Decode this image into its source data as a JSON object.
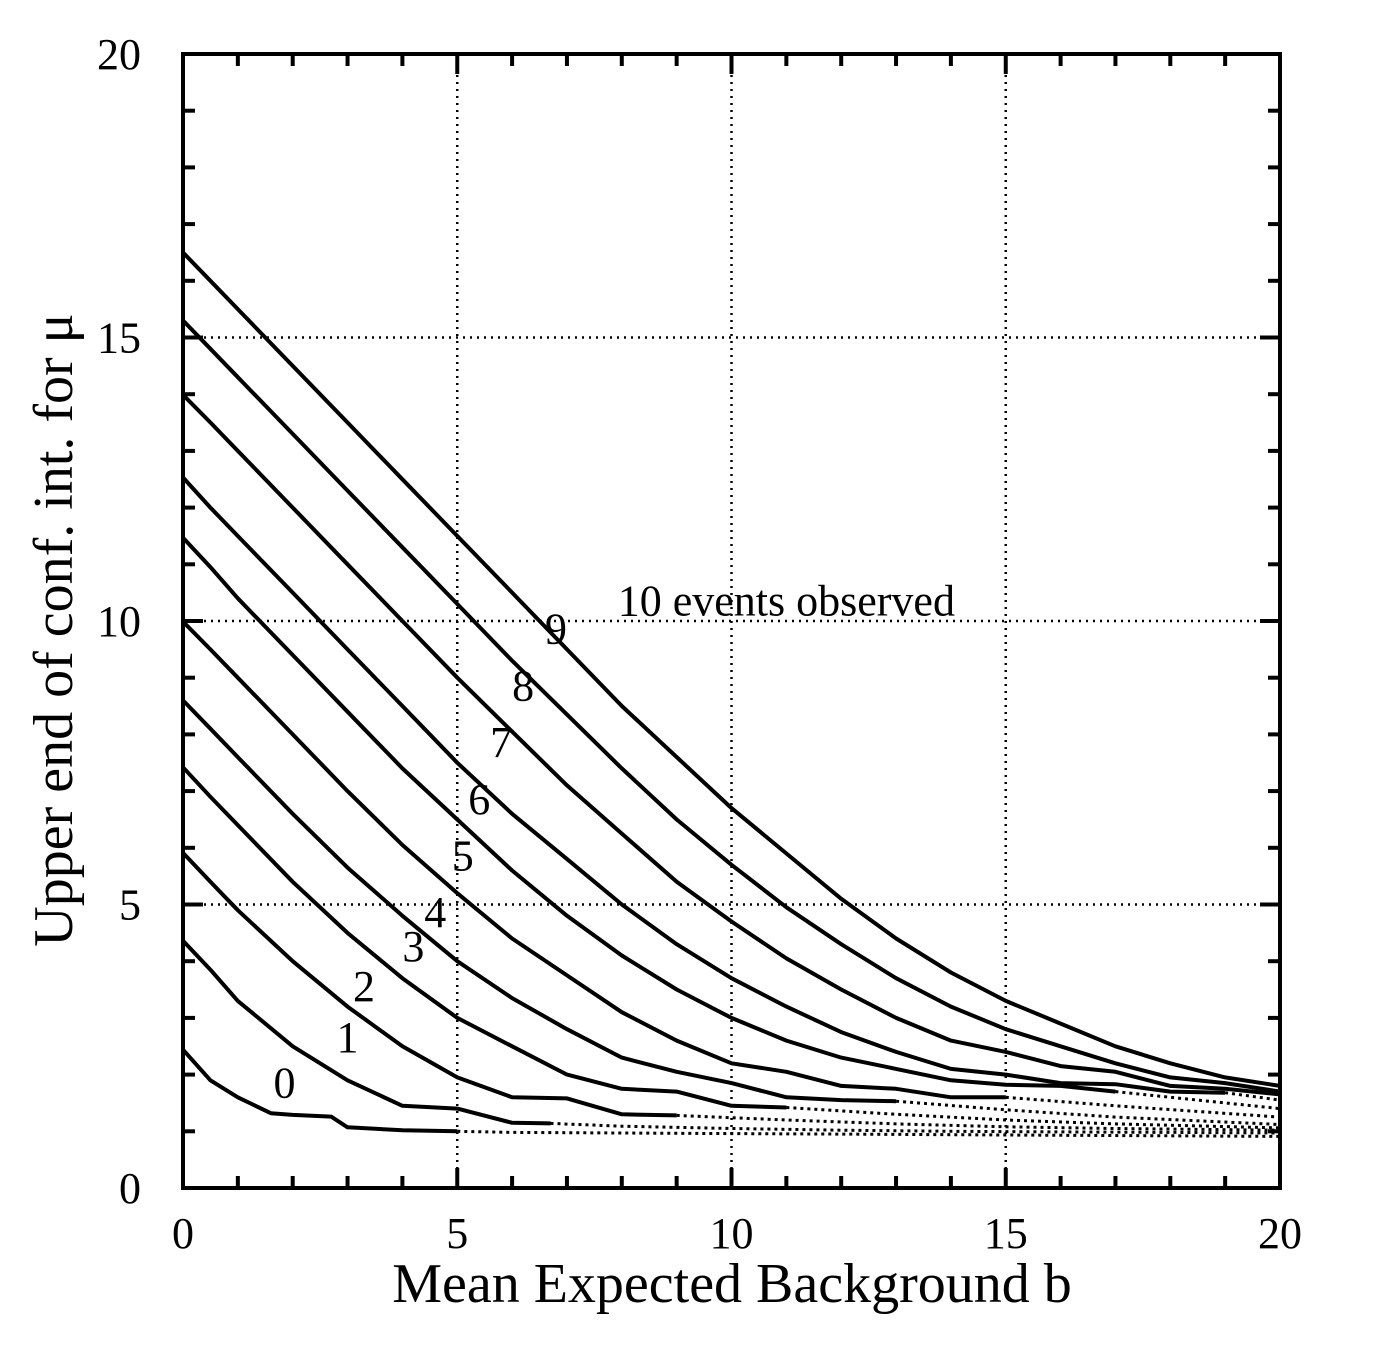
{
  "chart_data": {
    "type": "line",
    "xlabel": "Mean Expected Background b",
    "ylabel": "Upper end of conf. int. for μ",
    "xlim": [
      0,
      20
    ],
    "ylim": [
      0,
      20
    ],
    "x_ticks": [
      "0",
      "5",
      "10",
      "15",
      "20"
    ],
    "y_ticks": [
      "0",
      "5",
      "10",
      "15",
      "20"
    ],
    "grid": true,
    "colors": {
      "line": "#000000",
      "grid": "#000000"
    },
    "series": [
      {
        "name": "0",
        "label": "0",
        "solid": [
          [
            0,
            2.44
          ],
          [
            0.5,
            1.9
          ],
          [
            1,
            1.6
          ],
          [
            1.6,
            1.32
          ],
          [
            2,
            1.29
          ],
          [
            2.7,
            1.26
          ],
          [
            3,
            1.07
          ],
          [
            4,
            1.02
          ],
          [
            5,
            1.0
          ]
        ],
        "dotted": [
          [
            5,
            1.0
          ],
          [
            6,
            0.98
          ],
          [
            8,
            0.97
          ],
          [
            10,
            0.96
          ],
          [
            12,
            0.95
          ],
          [
            14,
            0.94
          ],
          [
            16,
            0.93
          ],
          [
            18,
            0.92
          ],
          [
            20,
            0.91
          ]
        ]
      },
      {
        "name": "1",
        "label": "1",
        "solid": [
          [
            0,
            4.36
          ],
          [
            0.5,
            3.85
          ],
          [
            1,
            3.3
          ],
          [
            2,
            2.5
          ],
          [
            3,
            1.9
          ],
          [
            4,
            1.45
          ],
          [
            5,
            1.4
          ],
          [
            6,
            1.15
          ],
          [
            6.7,
            1.14
          ]
        ],
        "dotted": [
          [
            6.7,
            1.14
          ],
          [
            8,
            1.09
          ],
          [
            10,
            1.05
          ],
          [
            12,
            1.02
          ],
          [
            14,
            1.0
          ],
          [
            16,
            0.99
          ],
          [
            18,
            0.98
          ],
          [
            20,
            0.97
          ]
        ]
      },
      {
        "name": "2",
        "label": "2",
        "solid": [
          [
            0,
            5.91
          ],
          [
            0.5,
            5.4
          ],
          [
            1,
            4.9
          ],
          [
            2,
            4.0
          ],
          [
            3,
            3.2
          ],
          [
            4,
            2.5
          ],
          [
            5,
            1.95
          ],
          [
            6,
            1.6
          ],
          [
            7,
            1.58
          ],
          [
            8,
            1.3
          ],
          [
            9,
            1.28
          ]
        ],
        "dotted": [
          [
            9,
            1.28
          ],
          [
            11,
            1.2
          ],
          [
            13,
            1.13
          ],
          [
            15,
            1.08
          ],
          [
            17,
            1.05
          ],
          [
            20,
            1.02
          ]
        ]
      },
      {
        "name": "3",
        "label": "3",
        "solid": [
          [
            0,
            7.42
          ],
          [
            0.5,
            6.9
          ],
          [
            1,
            6.4
          ],
          [
            2,
            5.4
          ],
          [
            3,
            4.5
          ],
          [
            4,
            3.7
          ],
          [
            5,
            3.0
          ],
          [
            6,
            2.5
          ],
          [
            7,
            2.0
          ],
          [
            8,
            1.75
          ],
          [
            9,
            1.7
          ],
          [
            10,
            1.45
          ],
          [
            11,
            1.42
          ]
        ],
        "dotted": [
          [
            11,
            1.42
          ],
          [
            13,
            1.3
          ],
          [
            15,
            1.2
          ],
          [
            17,
            1.13
          ],
          [
            20,
            1.06
          ]
        ]
      },
      {
        "name": "4",
        "label": "4",
        "solid": [
          [
            0,
            8.6
          ],
          [
            0.5,
            8.1
          ],
          [
            1,
            7.6
          ],
          [
            2,
            6.6
          ],
          [
            3,
            5.65
          ],
          [
            4,
            4.8
          ],
          [
            5,
            4.0
          ],
          [
            6,
            3.35
          ],
          [
            7,
            2.8
          ],
          [
            8,
            2.3
          ],
          [
            9,
            2.05
          ],
          [
            10,
            1.85
          ],
          [
            11,
            1.6
          ],
          [
            12,
            1.55
          ],
          [
            13,
            1.53
          ]
        ],
        "dotted": [
          [
            13,
            1.53
          ],
          [
            15,
            1.38
          ],
          [
            17,
            1.25
          ],
          [
            20,
            1.12
          ]
        ]
      },
      {
        "name": "5",
        "label": "5",
        "solid": [
          [
            0,
            9.99
          ],
          [
            0.5,
            9.5
          ],
          [
            1,
            9.0
          ],
          [
            2,
            8.0
          ],
          [
            3,
            7.0
          ],
          [
            4,
            6.05
          ],
          [
            5,
            5.2
          ],
          [
            6,
            4.4
          ],
          [
            7,
            3.75
          ],
          [
            8,
            3.1
          ],
          [
            9,
            2.6
          ],
          [
            10,
            2.2
          ],
          [
            11,
            2.05
          ],
          [
            12,
            1.8
          ],
          [
            13,
            1.75
          ],
          [
            14,
            1.6
          ],
          [
            15,
            1.6
          ]
        ],
        "dotted": [
          [
            15,
            1.6
          ],
          [
            17,
            1.45
          ],
          [
            20,
            1.25
          ]
        ]
      },
      {
        "name": "6",
        "label": "6",
        "solid": [
          [
            0,
            11.47
          ],
          [
            0.5,
            10.95
          ],
          [
            1,
            10.4
          ],
          [
            2,
            9.4
          ],
          [
            3,
            8.4
          ],
          [
            4,
            7.4
          ],
          [
            5,
            6.5
          ],
          [
            6,
            5.6
          ],
          [
            7,
            4.8
          ],
          [
            8,
            4.1
          ],
          [
            9,
            3.5
          ],
          [
            10,
            3.0
          ],
          [
            11,
            2.6
          ],
          [
            12,
            2.3
          ],
          [
            13,
            2.1
          ],
          [
            14,
            1.9
          ],
          [
            15,
            1.82
          ],
          [
            16,
            1.8
          ],
          [
            17,
            1.7
          ]
        ],
        "dotted": [
          [
            17,
            1.7
          ],
          [
            20,
            1.4
          ]
        ]
      },
      {
        "name": "7",
        "label": "7",
        "solid": [
          [
            0,
            12.53
          ],
          [
            0.5,
            12.0
          ],
          [
            1,
            11.5
          ],
          [
            2,
            10.5
          ],
          [
            3,
            9.5
          ],
          [
            4,
            8.5
          ],
          [
            5,
            7.5
          ],
          [
            6,
            6.6
          ],
          [
            7,
            5.8
          ],
          [
            8,
            5.0
          ],
          [
            9,
            4.3
          ],
          [
            10,
            3.7
          ],
          [
            11,
            3.2
          ],
          [
            12,
            2.75
          ],
          [
            13,
            2.4
          ],
          [
            14,
            2.1
          ],
          [
            15,
            2.0
          ],
          [
            16,
            1.85
          ],
          [
            17,
            1.83
          ],
          [
            18,
            1.7
          ],
          [
            19,
            1.68
          ]
        ],
        "dotted": [
          [
            19,
            1.68
          ],
          [
            20,
            1.55
          ]
        ]
      },
      {
        "name": "8",
        "label": "8",
        "solid": [
          [
            0,
            13.99
          ],
          [
            0.5,
            13.5
          ],
          [
            1,
            13.0
          ],
          [
            2,
            12.0
          ],
          [
            3,
            11.0
          ],
          [
            4,
            10.0
          ],
          [
            5,
            9.0
          ],
          [
            6,
            8.05
          ],
          [
            7,
            7.1
          ],
          [
            8,
            6.25
          ],
          [
            9,
            5.4
          ],
          [
            10,
            4.7
          ],
          [
            11,
            4.05
          ],
          [
            12,
            3.5
          ],
          [
            13,
            3.0
          ],
          [
            14,
            2.6
          ],
          [
            15,
            2.4
          ],
          [
            16,
            2.15
          ],
          [
            17,
            2.05
          ],
          [
            18,
            1.8
          ],
          [
            19,
            1.75
          ],
          [
            20,
            1.65
          ]
        ],
        "dotted": []
      },
      {
        "name": "9",
        "label": "9",
        "solid": [
          [
            0,
            15.3
          ],
          [
            0.5,
            14.8
          ],
          [
            1,
            14.3
          ],
          [
            2,
            13.3
          ],
          [
            3,
            12.3
          ],
          [
            4,
            11.3
          ],
          [
            5,
            10.3
          ],
          [
            6,
            9.3
          ],
          [
            7,
            8.35
          ],
          [
            8,
            7.4
          ],
          [
            9,
            6.5
          ],
          [
            10,
            5.7
          ],
          [
            11,
            4.95
          ],
          [
            12,
            4.3
          ],
          [
            13,
            3.7
          ],
          [
            14,
            3.2
          ],
          [
            15,
            2.8
          ],
          [
            16,
            2.5
          ],
          [
            17,
            2.2
          ],
          [
            18,
            1.95
          ],
          [
            19,
            1.85
          ],
          [
            20,
            1.7
          ]
        ],
        "dotted": []
      },
      {
        "name": "10 events observed",
        "label": "10 events observed",
        "solid": [
          [
            0,
            16.5
          ],
          [
            0.5,
            16.0
          ],
          [
            1,
            15.5
          ],
          [
            2,
            14.5
          ],
          [
            3,
            13.5
          ],
          [
            4,
            12.5
          ],
          [
            5,
            11.5
          ],
          [
            6,
            10.5
          ],
          [
            7,
            9.5
          ],
          [
            8,
            8.5
          ],
          [
            9,
            7.6
          ],
          [
            10,
            6.7
          ],
          [
            11,
            5.9
          ],
          [
            12,
            5.1
          ],
          [
            13,
            4.4
          ],
          [
            14,
            3.8
          ],
          [
            15,
            3.3
          ],
          [
            16,
            2.9
          ],
          [
            17,
            2.5
          ],
          [
            18,
            2.2
          ],
          [
            19,
            1.95
          ],
          [
            20,
            1.8
          ]
        ],
        "dotted": []
      }
    ]
  }
}
